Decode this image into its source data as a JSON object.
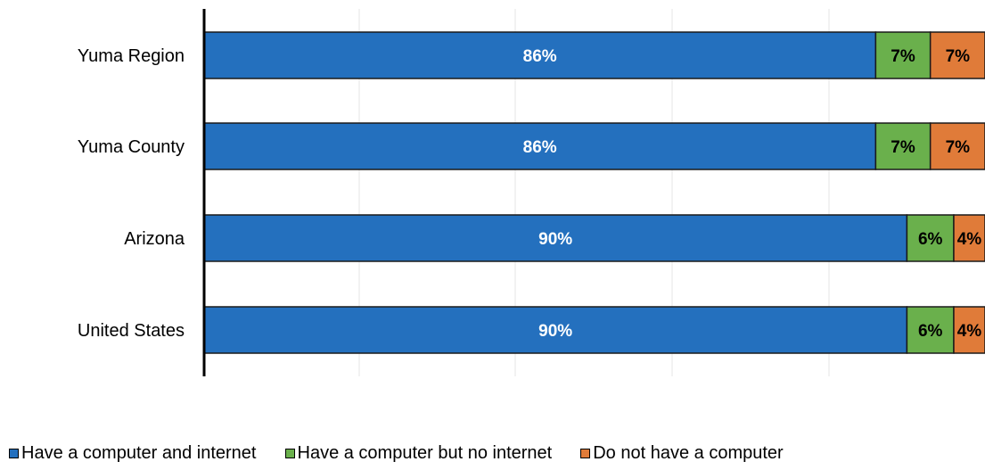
{
  "chart_data": {
    "type": "bar",
    "orientation": "horizontal",
    "stacked": true,
    "categories": [
      "Yuma Region",
      "Yuma County",
      "Arizona",
      "United States"
    ],
    "series": [
      {
        "name": "Have a computer and internet",
        "values": [
          86,
          86,
          90,
          90
        ],
        "labels": [
          "86%",
          "86%",
          "90%",
          "90%"
        ],
        "color": "#2470be",
        "label_color": "#ffffff"
      },
      {
        "name": "Have a computer but no internet",
        "values": [
          7,
          7,
          6,
          6
        ],
        "labels": [
          "7%",
          "7%",
          "6%",
          "6%"
        ],
        "color": "#6ab04c",
        "label_color": "#000000"
      },
      {
        "name": "Do not have a computer",
        "values": [
          7,
          7,
          4,
          4
        ],
        "labels": [
          "7%",
          "7%",
          "4%",
          "4%"
        ],
        "color": "#e07b39",
        "label_color": "#000000"
      }
    ],
    "xlim": [
      0,
      100
    ],
    "grid": true,
    "legend_position": "bottom"
  }
}
